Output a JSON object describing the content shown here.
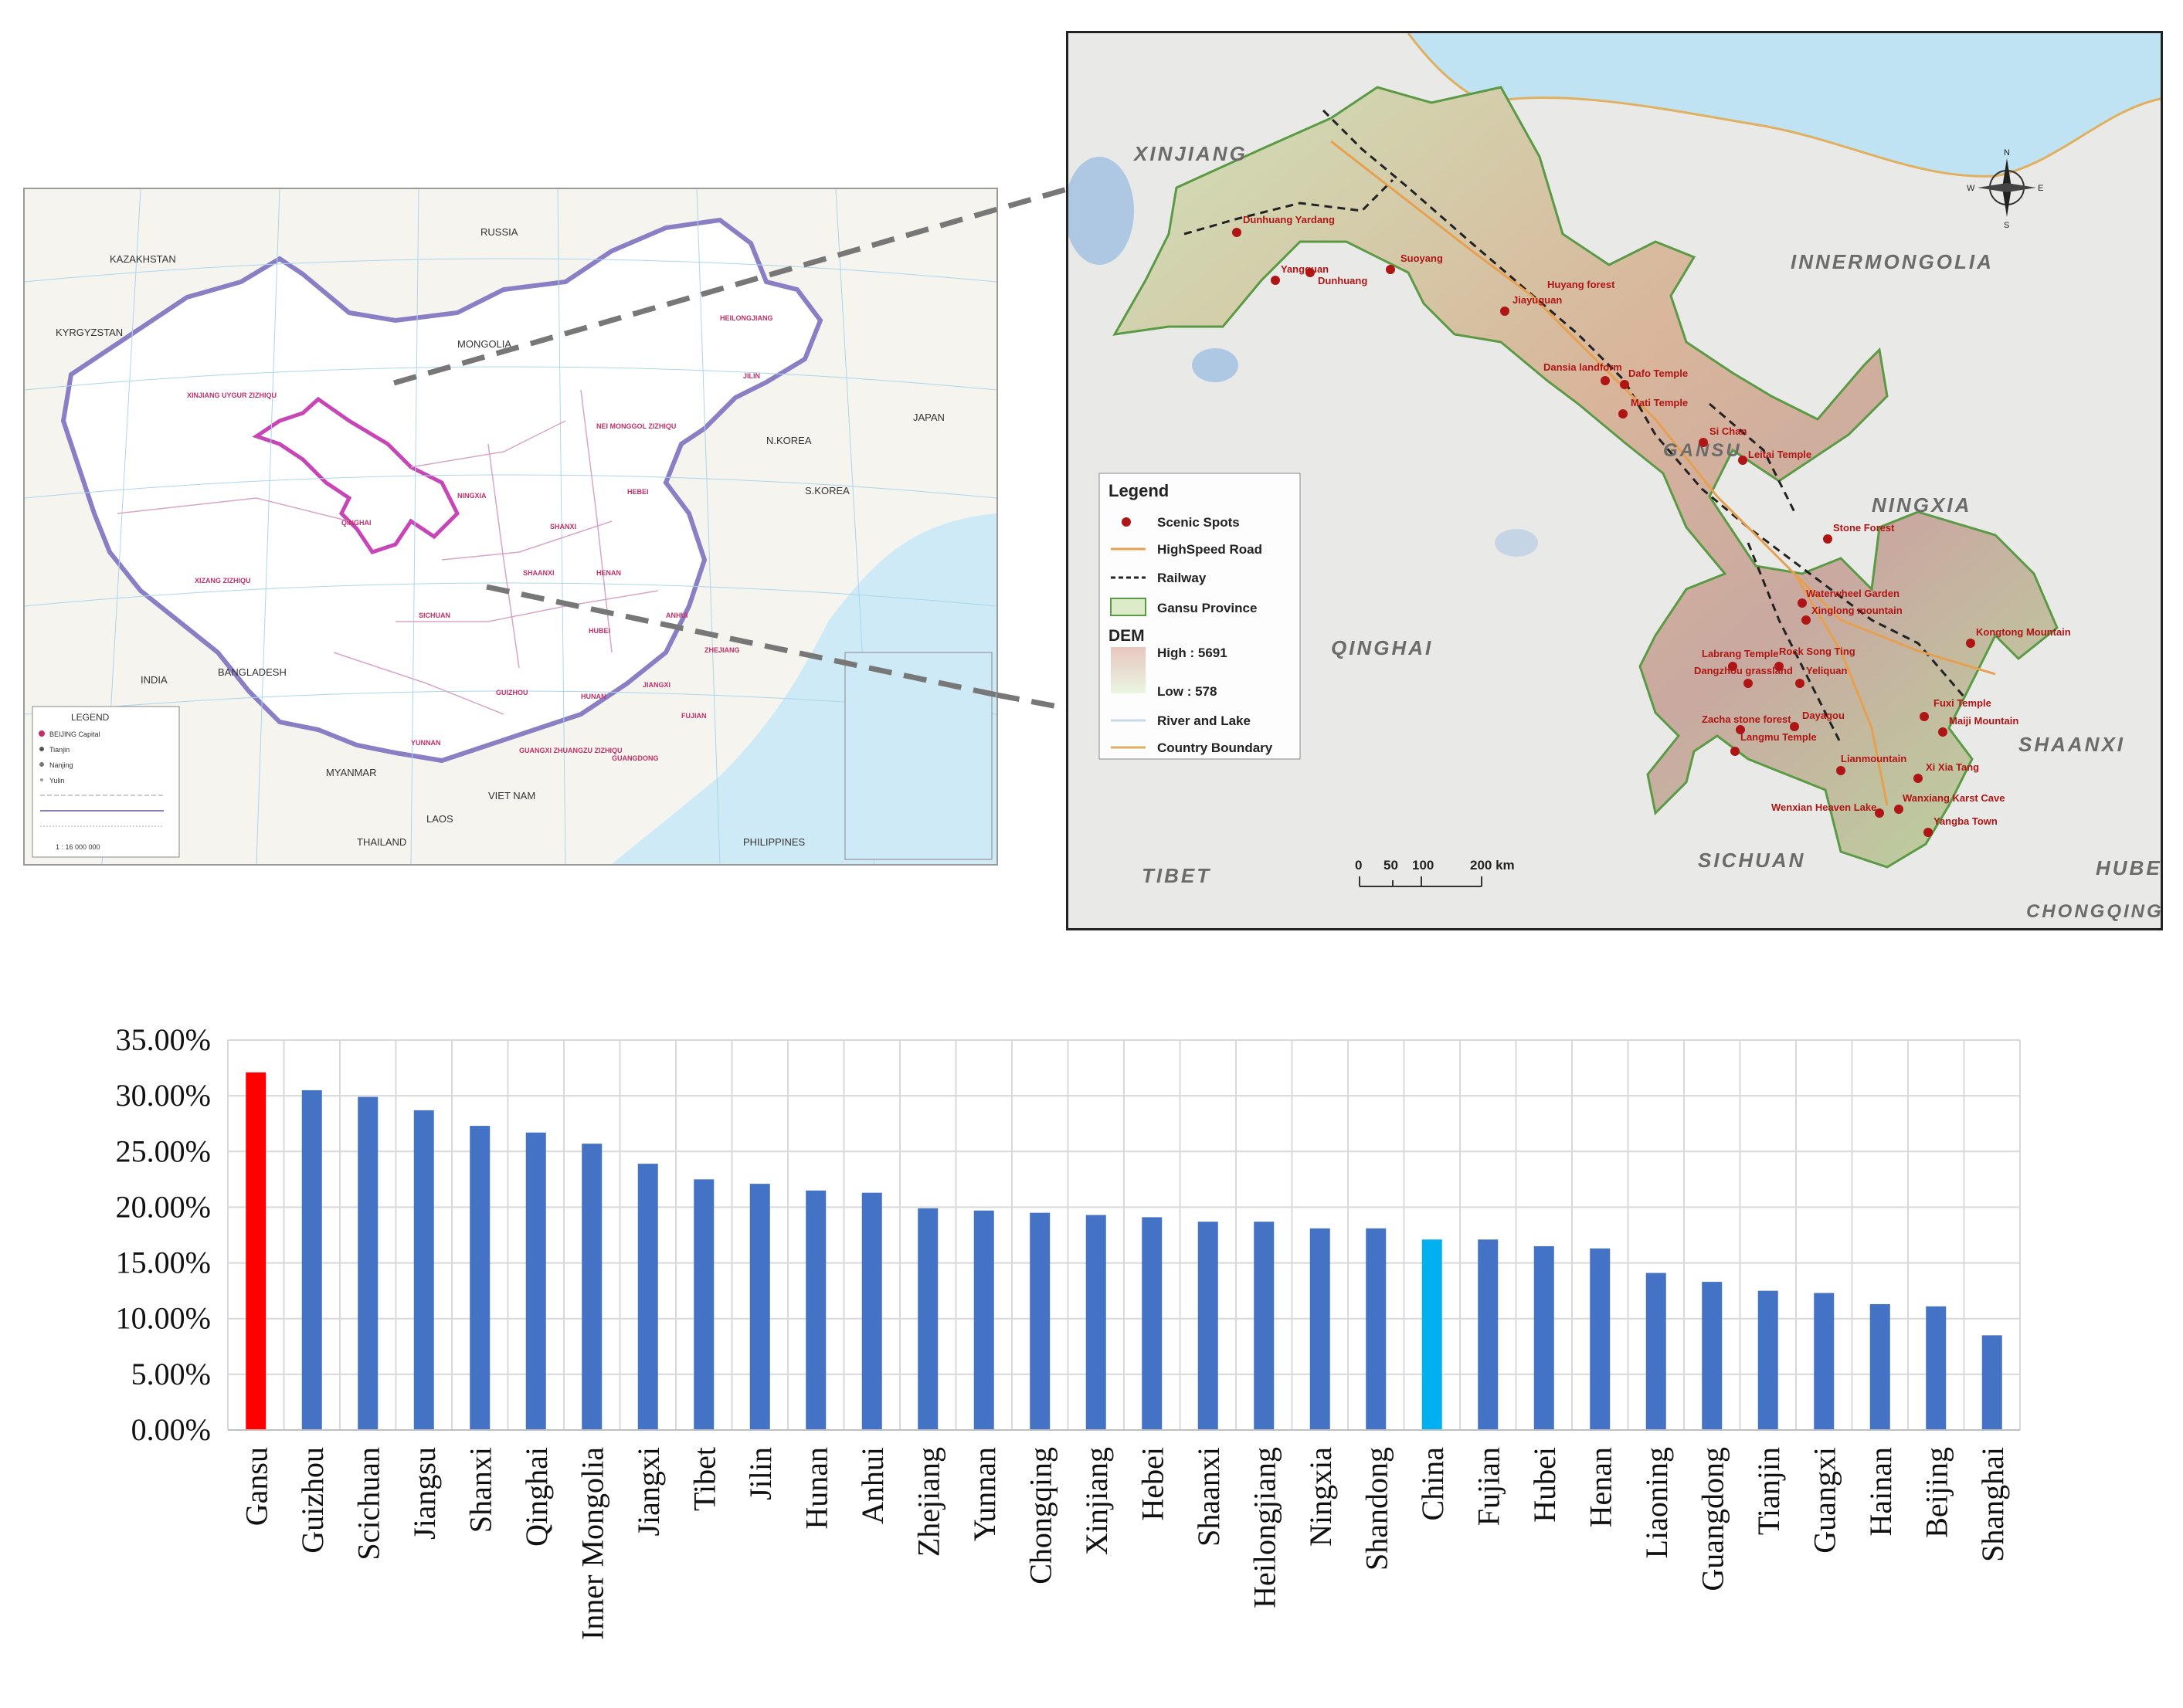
{
  "china_map": {
    "countries": [
      "RUSSIA",
      "MONGOLIA",
      "KAZAKHSTAN",
      "KYRGYZSTAN",
      "INDIA",
      "MYANMAR",
      "BANGLADESH",
      "LAOS",
      "VIET NAM",
      "THAILAND",
      "PHILIPPINES",
      "N.KOREA",
      "S.KOREA",
      "JAPAN"
    ],
    "provinces": [
      "XINJIANG UYGUR ZIZHIQU",
      "QINGHAI",
      "XIZANG ZIZHIQU",
      "SICHUAN",
      "HEILONGJIANG",
      "JILIN",
      "NEI MONGGOL ZIZHIQU",
      "GUANGXI ZHUANGZU ZIZHIQU",
      "YUNNAN",
      "GUIZHOU",
      "HUNAN",
      "JIANGXI",
      "FUJIAN",
      "SHAANXI",
      "HENAN",
      "SHANXI",
      "HEBEI",
      "ANHUI",
      "HUBEI",
      "ZHEJIANG",
      "GUANGDONG",
      "NINGXIA"
    ],
    "legend_title": "LEGEND",
    "legend_items": [
      "BEIJING  Capital",
      "Tianjin",
      "Nanjing",
      "Yulin"
    ],
    "scale": "1 : 16 000 000"
  },
  "gansu_map": {
    "regions": {
      "xinjiang": "XINJIANG",
      "inner_mongolia": "INNERMONGOLIA",
      "ningxia": "NINGXIA",
      "qinghai": "QINGHAI",
      "shaanxi": "SHAANXI",
      "sichuan": "SICHUAN",
      "tibet": "TIBET",
      "hubei": "HUBEI",
      "chongqing": "CHONGQING",
      "gansu": "GANSU"
    },
    "compass": {
      "n": "N",
      "s": "S",
      "e": "E",
      "w": "W"
    },
    "scenic_spots": [
      "Dunhuang Yardang",
      "Yangguan",
      "Dunhuang",
      "Suoyang",
      "Jiayuguan",
      "Huyang forest",
      "Dansia landform",
      "Dafo Temple",
      "Mati Temple",
      "Si Chan",
      "Leitai Temple",
      "Stone Forest",
      "Waterwheel Garden",
      "Xinglong mountain",
      "Kongtong Mountain",
      "Labrang Temple",
      "Rock Song Ting",
      "Dangzhou grassland",
      "Yeliquan",
      "Zacha stone forest",
      "Langmu Temple",
      "Dayagou",
      "Fuxi Temple",
      "Maiji Mountain",
      "Lianmountain",
      "Xi Xia Tang",
      "Wenxian Heaven Lake",
      "Wanxiang Karst Cave",
      "Yangba Town"
    ],
    "legend": {
      "title": "Legend",
      "scenic": "Scenic Spots",
      "road": "HighSpeed Road",
      "railway": "Railway",
      "province": "Gansu Province",
      "dem_title": "DEM",
      "high": "High : 5691",
      "low": "Low : 578",
      "river": "River and Lake",
      "boundary": "Country Boundary"
    },
    "scale_labels": [
      "0",
      "50",
      "100",
      "200 km"
    ]
  },
  "chart_data": {
    "type": "bar",
    "categories": [
      "Gansu",
      "Guizhou",
      "Scichuan",
      "Jiangsu",
      "Shanxi",
      "Qinghai",
      "Inner Mongolia",
      "Jiangxi",
      "Tibet",
      "Jilin",
      "Hunan",
      "Anhui",
      "Zhejiang",
      "Yunnan",
      "Chongqing",
      "Xinjiang",
      "Hebei",
      "Shaanxi",
      "Heilongjiang",
      "Ningxia",
      "Shandong",
      "China",
      "Fujian",
      "Hubei",
      "Henan",
      "Liaoning",
      "Guangdong",
      "Tianjin",
      "Guangxi",
      "Hainan",
      "Beijing",
      "Shanghai"
    ],
    "values": [
      32.1,
      30.5,
      29.9,
      28.7,
      27.3,
      26.7,
      25.7,
      23.9,
      22.5,
      22.1,
      21.5,
      21.3,
      19.9,
      19.7,
      19.5,
      19.3,
      19.1,
      18.7,
      18.7,
      18.1,
      18.1,
      17.1,
      17.1,
      16.5,
      16.3,
      14.1,
      13.3,
      12.5,
      12.3,
      11.3,
      11.1,
      8.5
    ],
    "ylim": [
      0,
      35
    ],
    "yticks": [
      "0.00%",
      "5.00%",
      "10.00%",
      "15.00%",
      "20.00%",
      "25.00%",
      "30.00%",
      "35.00%"
    ],
    "grid": true,
    "colors": {
      "default": "#4472c4",
      "highlight": "#ff0000",
      "reference": "#00b0f0"
    },
    "highlight_category": "Gansu",
    "reference_category": "China",
    "xlabel": "",
    "ylabel": "",
    "title": ""
  }
}
